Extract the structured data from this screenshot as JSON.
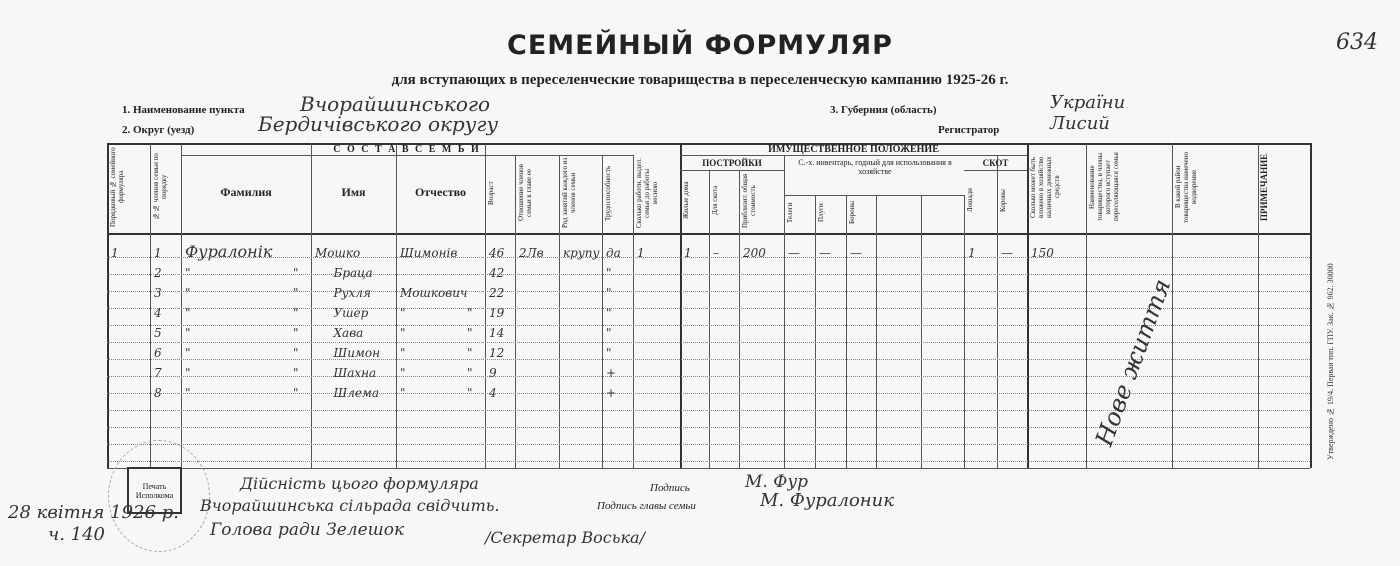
{
  "page_number": "634",
  "title": "СЕМЕЙНЫЙ ФОРМУЛЯР",
  "subtitle": "для вступающих в переселенческие товарищества в переселенческую кампанию 1925-26 г.",
  "fields": {
    "settlement_label": "1. Наименование пункта",
    "settlement_value": "Вчорайшинського",
    "district_label": "2. Округ (уезд)",
    "district_value": "Бердичівського округу",
    "province_label": "3. Губерния (область)",
    "province_value": "України",
    "registrar_label": "Регистратор",
    "registrar_value": "Лисий"
  },
  "table": {
    "group_family": "С О С Т А В   С Е М Ь И",
    "group_property": "ИМУЩЕСТВЕННОЕ ПОЛОЖЕНИЕ",
    "group_buildings": "ПОСТРОЙКИ",
    "group_inventory": "С.-х. инвентарь, годный для использования в хозяйстве",
    "group_livestock": "СКОТ",
    "headers": {
      "form_no": "Порядковый № семейного формуляра",
      "member_no": "№№ членов семьи по порядку",
      "surname": "Фамилия",
      "name": "Имя",
      "patronymic": "Отчество",
      "age": "Возраст",
      "relation": "Отношение членов семьи к главе ее",
      "occupation": "Род занятий каждого из членов семьи",
      "able": "Трудоспособность",
      "workers": "Сколько работн. выдел. семья до работы весною",
      "houses": "Жилые дома",
      "cattle_sheds": "Для скота",
      "value": "Приблизит. общая стоимость",
      "carts": "Телеги",
      "ploughs": "Плуги",
      "harrows": "Бороны",
      "inv_extra1": "",
      "inv_extra2": "",
      "horses": "Лошади",
      "cows": "Коровы",
      "cash": "Сколько может быть вложено в хозяйство наличных денежных средств",
      "society": "Наименование товарищества, в члены которого вступает переселяющаяся семья",
      "region": "В какой район товарищества намечено водворение",
      "note": "ПРИМЕЧАНИЕ"
    },
    "rows": [
      {
        "form_no": "1",
        "member_no": "1",
        "surname": "Фуралонік",
        "name": "Мошко",
        "patronymic": "Шимонів",
        "age": "46",
        "relation": "2Лв",
        "occupation": "крупу",
        "able": "да",
        "workers": "1",
        "houses": "1",
        "cattle_sheds": "–",
        "value": "200",
        "carts": "—",
        "ploughs": "—",
        "harrows": "—",
        "horses": "1",
        "cows": "—",
        "cash": "150"
      },
      {
        "member_no": "2",
        "surname": "\"",
        "surname2": "\"",
        "name": "Браца",
        "age": "42",
        "able": "\""
      },
      {
        "member_no": "3",
        "surname": "\"",
        "surname2": "\"",
        "name": "Рухля",
        "patronymic": "Мошкович",
        "age": "22",
        "able": "\""
      },
      {
        "member_no": "4",
        "surname": "\"",
        "surname2": "\"",
        "name": "Ушер",
        "patronymic": "\"",
        "patronymic2": "\"",
        "age": "19",
        "able": "\""
      },
      {
        "member_no": "5",
        "surname": "\"",
        "surname2": "\"",
        "name": "Хава",
        "patronymic": "\"",
        "patronymic2": "\"",
        "age": "14",
        "able": "\""
      },
      {
        "member_no": "6",
        "surname": "\"",
        "surname2": "\"",
        "name": "Шимон",
        "patronymic": "\"",
        "patronymic2": "\"",
        "age": "12",
        "able": "\""
      },
      {
        "member_no": "7",
        "surname": "\"",
        "surname2": "\"",
        "name": "Шахна",
        "patronymic": "\"",
        "patronymic2": "\"",
        "age": "9",
        "able": "+"
      },
      {
        "member_no": "8",
        "surname": "\"",
        "surname2": "\"",
        "name": "Шлема",
        "patronymic": "\"",
        "patronymic2": "\"",
        "age": "4",
        "able": "+"
      }
    ],
    "society_value": "Нове життя"
  },
  "footer": {
    "stamp_line1": "Печать",
    "stamp_line2": "Исполкома",
    "cert_line1": "Дійсність цього формуляра",
    "cert_line2": "Вчорайшинська сільрада свідчить.",
    "chair": "Голова ради  Зелешок",
    "secretary": "/Секретар Воська/",
    "date_line1": "28 квітня 1926 р.",
    "date_line2": "ч. 140",
    "signature_label": "Подпись",
    "signature_value": "М. Фур",
    "head_signature_label": "Подпись главы семьи",
    "head_signature_value": "М. Фуралоник"
  },
  "side_print": "Утверждено № 19/4. Первая тип. ГПУ. Зак. № 962. 30000"
}
